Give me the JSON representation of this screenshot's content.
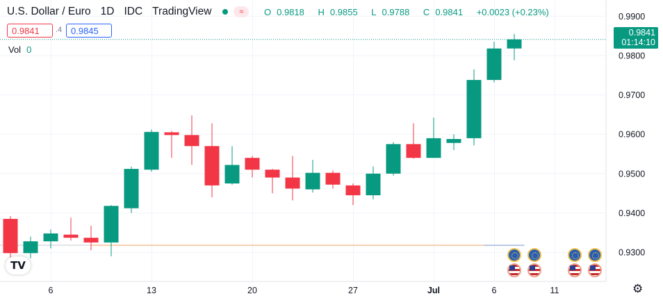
{
  "header": {
    "symbol": "U.S. Dollar / Euro",
    "interval": "1D",
    "exchange": "IDC",
    "source": "TradingView",
    "status_icon": "≈"
  },
  "ohlc": {
    "open_label": "O",
    "open": "0.9818",
    "high_label": "H",
    "high": "0.9855",
    "low_label": "L",
    "low": "0.9788",
    "close_label": "C",
    "close": "0.9841",
    "change": "+0.0023 (+0.23%)"
  },
  "trade": {
    "sell": "0.9841",
    "spread": ".4",
    "buy": "0.9845"
  },
  "volume": {
    "label": "Vol",
    "value": "0"
  },
  "last_price": {
    "price": "0.9841",
    "countdown": "01:14:10"
  },
  "colors": {
    "up": "#089981",
    "down": "#f23645",
    "grid": "#f0f3fa",
    "text": "#131722"
  },
  "icons": {
    "logo": "tradingview-logo-icon",
    "settings": "gear-icon",
    "eu_event": "eu-flag-icon",
    "us_event": "us-flag-icon"
  },
  "chart_data": {
    "type": "candlestick",
    "ylim": [
      0.9226,
      0.992
    ],
    "y_ticks": [
      "0.9900",
      "0.9800",
      "0.9700",
      "0.9600",
      "0.9500",
      "0.9400",
      "0.9300"
    ],
    "x_ticks": [
      {
        "label": "6",
        "index": 2
      },
      {
        "label": "13",
        "index": 7
      },
      {
        "label": "20",
        "index": 12
      },
      {
        "label": "27",
        "index": 17
      },
      {
        "label": "Jul",
        "index": 21,
        "bold": true
      },
      {
        "label": "6",
        "index": 24
      },
      {
        "label": "11",
        "index": 27
      }
    ],
    "candles": [
      {
        "o": 0.9385,
        "h": 0.9392,
        "l": 0.928,
        "c": 0.9298
      },
      {
        "o": 0.9298,
        "h": 0.934,
        "l": 0.9285,
        "c": 0.9328
      },
      {
        "o": 0.9328,
        "h": 0.9358,
        "l": 0.931,
        "c": 0.9348
      },
      {
        "o": 0.9345,
        "h": 0.9388,
        "l": 0.933,
        "c": 0.9337
      },
      {
        "o": 0.9337,
        "h": 0.9368,
        "l": 0.9305,
        "c": 0.9325
      },
      {
        "o": 0.9325,
        "h": 0.942,
        "l": 0.929,
        "c": 0.9418
      },
      {
        "o": 0.9412,
        "h": 0.9518,
        "l": 0.94,
        "c": 0.9512
      },
      {
        "o": 0.951,
        "h": 0.9612,
        "l": 0.9505,
        "c": 0.9606
      },
      {
        "o": 0.9605,
        "h": 0.9608,
        "l": 0.954,
        "c": 0.9598
      },
      {
        "o": 0.9598,
        "h": 0.9648,
        "l": 0.9522,
        "c": 0.957
      },
      {
        "o": 0.957,
        "h": 0.9628,
        "l": 0.944,
        "c": 0.947
      },
      {
        "o": 0.9475,
        "h": 0.957,
        "l": 0.9472,
        "c": 0.9522
      },
      {
        "o": 0.954,
        "h": 0.9545,
        "l": 0.949,
        "c": 0.951
      },
      {
        "o": 0.951,
        "h": 0.9512,
        "l": 0.945,
        "c": 0.949
      },
      {
        "o": 0.949,
        "h": 0.9545,
        "l": 0.9432,
        "c": 0.9462
      },
      {
        "o": 0.946,
        "h": 0.9535,
        "l": 0.9452,
        "c": 0.9502
      },
      {
        "o": 0.9502,
        "h": 0.9508,
        "l": 0.9462,
        "c": 0.9472
      },
      {
        "o": 0.947,
        "h": 0.9475,
        "l": 0.942,
        "c": 0.9445
      },
      {
        "o": 0.9445,
        "h": 0.9518,
        "l": 0.9435,
        "c": 0.95
      },
      {
        "o": 0.95,
        "h": 0.958,
        "l": 0.9495,
        "c": 0.9575
      },
      {
        "o": 0.9575,
        "h": 0.9628,
        "l": 0.9538,
        "c": 0.954
      },
      {
        "o": 0.954,
        "h": 0.9642,
        "l": 0.954,
        "c": 0.959
      },
      {
        "o": 0.9578,
        "h": 0.96,
        "l": 0.956,
        "c": 0.9588
      },
      {
        "o": 0.959,
        "h": 0.9765,
        "l": 0.9572,
        "c": 0.9738
      },
      {
        "o": 0.9738,
        "h": 0.9835,
        "l": 0.9732,
        "c": 0.9818
      },
      {
        "o": 0.9818,
        "h": 0.9855,
        "l": 0.9788,
        "c": 0.9841
      }
    ],
    "last_price": 0.9841,
    "moving_average": 0.9318,
    "events": [
      {
        "index": 25,
        "types": [
          "eu",
          "us"
        ]
      },
      {
        "index": 26,
        "types": [
          "eu",
          "us"
        ]
      },
      {
        "index": 28,
        "types": [
          "eu",
          "us"
        ]
      },
      {
        "index": 29,
        "types": [
          "eu",
          "us"
        ]
      }
    ]
  }
}
